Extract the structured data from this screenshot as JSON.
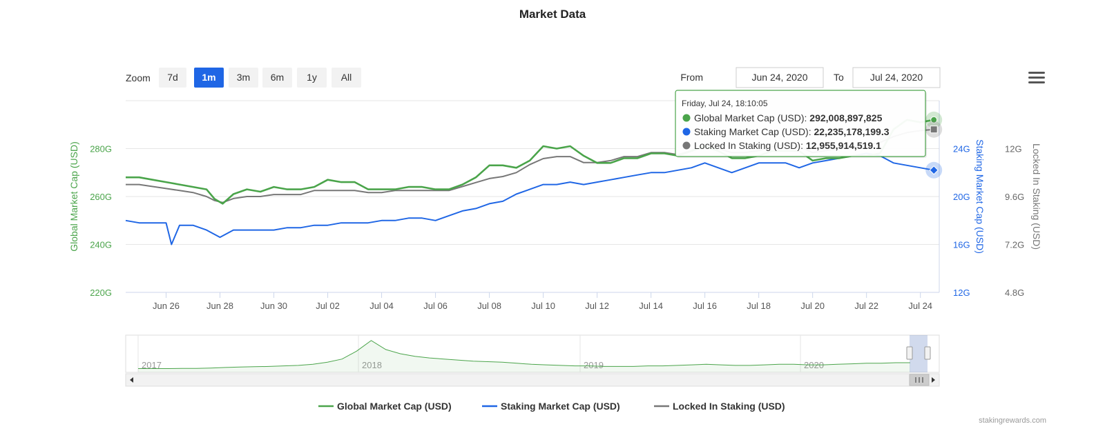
{
  "chart_data": {
    "type": "line",
    "title": "Market Data",
    "range_selector": {
      "zoom_label": "Zoom",
      "buttons": [
        "7d",
        "1m",
        "3m",
        "6m",
        "1y",
        "All"
      ],
      "selected": "1m",
      "from_label": "From",
      "from_value": "Jun 24, 2020",
      "to_label": "To",
      "to_value": "Jul 24, 2020"
    },
    "x_ticks": [
      "Jun 26",
      "Jun 28",
      "Jun 30",
      "Jul 02",
      "Jul 04",
      "Jul 06",
      "Jul 08",
      "Jul 10",
      "Jul 12",
      "Jul 14",
      "Jul 16",
      "Jul 18",
      "Jul 20",
      "Jul 22",
      "Jul 24"
    ],
    "x_range_days": [
      0,
      30.2
    ],
    "axes": {
      "left": {
        "label": "Global Market Cap (USD)",
        "ticks": [
          "220G",
          "240G",
          "260G",
          "280G"
        ],
        "range": [
          220,
          300
        ],
        "color": "#4aa44a"
      },
      "right1": {
        "label": "Staking Market Cap (USD)",
        "ticks": [
          "12G",
          "16G",
          "20G",
          "24G"
        ],
        "range": [
          12,
          28
        ],
        "color": "#1f66e5"
      },
      "right2": {
        "label": "Locked In Staking (USD)",
        "ticks": [
          "4.8G",
          "7.2G",
          "9.6G",
          "12G"
        ],
        "range": [
          4.8,
          14.4
        ],
        "color": "#777777"
      }
    },
    "series": [
      {
        "name": "Global Market Cap (USD)",
        "color": "#4aa44a",
        "axis": "left",
        "points": [
          [
            0,
            268
          ],
          [
            0.5,
            268
          ],
          [
            1,
            267
          ],
          [
            1.5,
            266
          ],
          [
            2,
            265
          ],
          [
            2.5,
            264
          ],
          [
            3,
            263
          ],
          [
            3.3,
            259
          ],
          [
            3.6,
            257
          ],
          [
            4,
            261
          ],
          [
            4.5,
            263
          ],
          [
            5,
            262
          ],
          [
            5.5,
            264
          ],
          [
            6,
            263
          ],
          [
            6.5,
            263
          ],
          [
            7,
            264
          ],
          [
            7.5,
            267
          ],
          [
            8,
            266
          ],
          [
            8.5,
            266
          ],
          [
            9,
            263
          ],
          [
            9.5,
            263
          ],
          [
            10,
            263
          ],
          [
            10.5,
            264
          ],
          [
            11,
            264
          ],
          [
            11.5,
            263
          ],
          [
            12,
            263
          ],
          [
            12.5,
            265
          ],
          [
            13,
            268
          ],
          [
            13.5,
            273
          ],
          [
            14,
            273
          ],
          [
            14.5,
            272
          ],
          [
            15,
            275
          ],
          [
            15.5,
            281
          ],
          [
            16,
            280
          ],
          [
            16.5,
            281
          ],
          [
            17,
            277
          ],
          [
            17.5,
            274
          ],
          [
            18,
            274
          ],
          [
            18.5,
            276
          ],
          [
            19,
            276
          ],
          [
            19.5,
            278
          ],
          [
            20,
            278
          ],
          [
            20.5,
            277
          ],
          [
            21,
            279
          ],
          [
            21.5,
            281
          ],
          [
            22,
            279
          ],
          [
            22.5,
            276
          ],
          [
            23,
            276
          ],
          [
            23.5,
            277
          ],
          [
            24,
            279
          ],
          [
            24.5,
            279
          ],
          [
            25,
            279
          ],
          [
            25.5,
            275
          ],
          [
            26,
            276
          ],
          [
            26.5,
            276
          ],
          [
            27,
            277
          ],
          [
            27.5,
            277
          ],
          [
            28,
            278
          ],
          [
            28.5,
            288
          ],
          [
            29,
            292
          ],
          [
            29.5,
            291
          ],
          [
            30,
            292
          ]
        ]
      },
      {
        "name": "Staking Market Cap (USD)",
        "color": "#1f66e5",
        "axis": "right1",
        "points": [
          [
            0,
            18.0
          ],
          [
            0.5,
            17.8
          ],
          [
            1,
            17.8
          ],
          [
            1.5,
            17.8
          ],
          [
            1.7,
            16.0
          ],
          [
            2,
            17.6
          ],
          [
            2.5,
            17.6
          ],
          [
            3,
            17.2
          ],
          [
            3.5,
            16.6
          ],
          [
            4,
            17.2
          ],
          [
            4.5,
            17.2
          ],
          [
            5,
            17.2
          ],
          [
            5.5,
            17.2
          ],
          [
            6,
            17.4
          ],
          [
            6.5,
            17.4
          ],
          [
            7,
            17.6
          ],
          [
            7.5,
            17.6
          ],
          [
            8,
            17.8
          ],
          [
            8.5,
            17.8
          ],
          [
            9,
            17.8
          ],
          [
            9.5,
            18.0
          ],
          [
            10,
            18.0
          ],
          [
            10.5,
            18.2
          ],
          [
            11,
            18.2
          ],
          [
            11.5,
            18.0
          ],
          [
            12,
            18.4
          ],
          [
            12.5,
            18.8
          ],
          [
            13,
            19.0
          ],
          [
            13.5,
            19.4
          ],
          [
            14,
            19.6
          ],
          [
            14.5,
            20.2
          ],
          [
            15,
            20.6
          ],
          [
            15.5,
            21.0
          ],
          [
            16,
            21.0
          ],
          [
            16.5,
            21.2
          ],
          [
            17,
            21.0
          ],
          [
            17.5,
            21.2
          ],
          [
            18,
            21.4
          ],
          [
            18.5,
            21.6
          ],
          [
            19,
            21.8
          ],
          [
            19.5,
            22.0
          ],
          [
            20,
            22.0
          ],
          [
            20.5,
            22.2
          ],
          [
            21,
            22.4
          ],
          [
            21.5,
            22.8
          ],
          [
            22,
            22.4
          ],
          [
            22.5,
            22.0
          ],
          [
            23,
            22.4
          ],
          [
            23.5,
            22.8
          ],
          [
            24,
            22.8
          ],
          [
            24.5,
            22.8
          ],
          [
            25,
            22.4
          ],
          [
            25.5,
            22.8
          ],
          [
            26,
            23.0
          ],
          [
            26.5,
            23.2
          ],
          [
            27,
            23.4
          ],
          [
            27.5,
            23.6
          ],
          [
            28,
            23.4
          ],
          [
            28.5,
            22.8
          ],
          [
            29,
            22.6
          ],
          [
            29.5,
            22.4
          ],
          [
            30,
            22.2
          ]
        ]
      },
      {
        "name": "Locked In Staking (USD)",
        "color": "#777777",
        "axis": "right2",
        "points": [
          [
            0,
            10.2
          ],
          [
            0.5,
            10.2
          ],
          [
            1,
            10.1
          ],
          [
            1.5,
            10.0
          ],
          [
            2,
            9.9
          ],
          [
            2.5,
            9.8
          ],
          [
            3,
            9.6
          ],
          [
            3.3,
            9.4
          ],
          [
            3.6,
            9.3
          ],
          [
            4,
            9.5
          ],
          [
            4.5,
            9.6
          ],
          [
            5,
            9.6
          ],
          [
            5.5,
            9.7
          ],
          [
            6,
            9.7
          ],
          [
            6.5,
            9.7
          ],
          [
            7,
            9.9
          ],
          [
            7.5,
            9.9
          ],
          [
            8,
            9.9
          ],
          [
            8.5,
            9.9
          ],
          [
            9,
            9.8
          ],
          [
            9.5,
            9.8
          ],
          [
            10,
            9.9
          ],
          [
            10.5,
            9.9
          ],
          [
            11,
            9.9
          ],
          [
            11.5,
            9.9
          ],
          [
            12,
            9.9
          ],
          [
            12.5,
            10.1
          ],
          [
            13,
            10.3
          ],
          [
            13.5,
            10.5
          ],
          [
            14,
            10.6
          ],
          [
            14.5,
            10.8
          ],
          [
            15,
            11.2
          ],
          [
            15.5,
            11.5
          ],
          [
            16,
            11.6
          ],
          [
            16.5,
            11.6
          ],
          [
            17,
            11.3
          ],
          [
            17.5,
            11.3
          ],
          [
            18,
            11.4
          ],
          [
            18.5,
            11.6
          ],
          [
            19,
            11.6
          ],
          [
            19.5,
            11.8
          ],
          [
            20,
            11.8
          ],
          [
            20.5,
            11.7
          ],
          [
            21,
            11.9
          ],
          [
            21.5,
            12.2
          ],
          [
            22,
            12.0
          ],
          [
            22.5,
            11.8
          ],
          [
            23,
            11.8
          ],
          [
            23.5,
            11.9
          ],
          [
            24,
            12.1
          ],
          [
            24.5,
            12.2
          ],
          [
            25,
            12.1
          ],
          [
            25.5,
            11.8
          ],
          [
            26,
            11.9
          ],
          [
            26.5,
            12.0
          ],
          [
            27,
            12.1
          ],
          [
            27.5,
            12.2
          ],
          [
            28,
            12.3
          ],
          [
            28.5,
            12.6
          ],
          [
            29,
            12.8
          ],
          [
            29.5,
            12.9
          ],
          [
            30,
            12.96
          ]
        ]
      }
    ],
    "tooltip": {
      "header": "Friday, Jul 24, 18:10:05",
      "rows": [
        {
          "label": "Global Market Cap (USD): ",
          "value": "292,008,897,825",
          "color": "#4aa44a"
        },
        {
          "label": "Staking Market Cap (USD): ",
          "value": "22,235,178,199.3",
          "color": "#1f66e5"
        },
        {
          "label": "Locked In Staking (USD): ",
          "value": "12,955,914,519.1",
          "color": "#777777"
        }
      ]
    },
    "navigator": {
      "year_labels": [
        "2017",
        "2018",
        "2019",
        "2020"
      ],
      "values": [
        2,
        2,
        2,
        2.2,
        2.4,
        3,
        4,
        5,
        5.5,
        6,
        7,
        8,
        10,
        14,
        20,
        35,
        55,
        38,
        30,
        25,
        22,
        20,
        18,
        16,
        15,
        14,
        12,
        10,
        9,
        8,
        7,
        7,
        6,
        6,
        6,
        7,
        7,
        8,
        9,
        10,
        9,
        8,
        8,
        9,
        10,
        10,
        9,
        9,
        10,
        11,
        12,
        12,
        13,
        13
      ]
    },
    "legend": [
      "Global Market Cap (USD)",
      "Staking Market Cap (USD)",
      "Locked In Staking (USD)"
    ],
    "credits": "stakingrewards.com"
  },
  "menu_icon": "hamburger-menu-icon"
}
